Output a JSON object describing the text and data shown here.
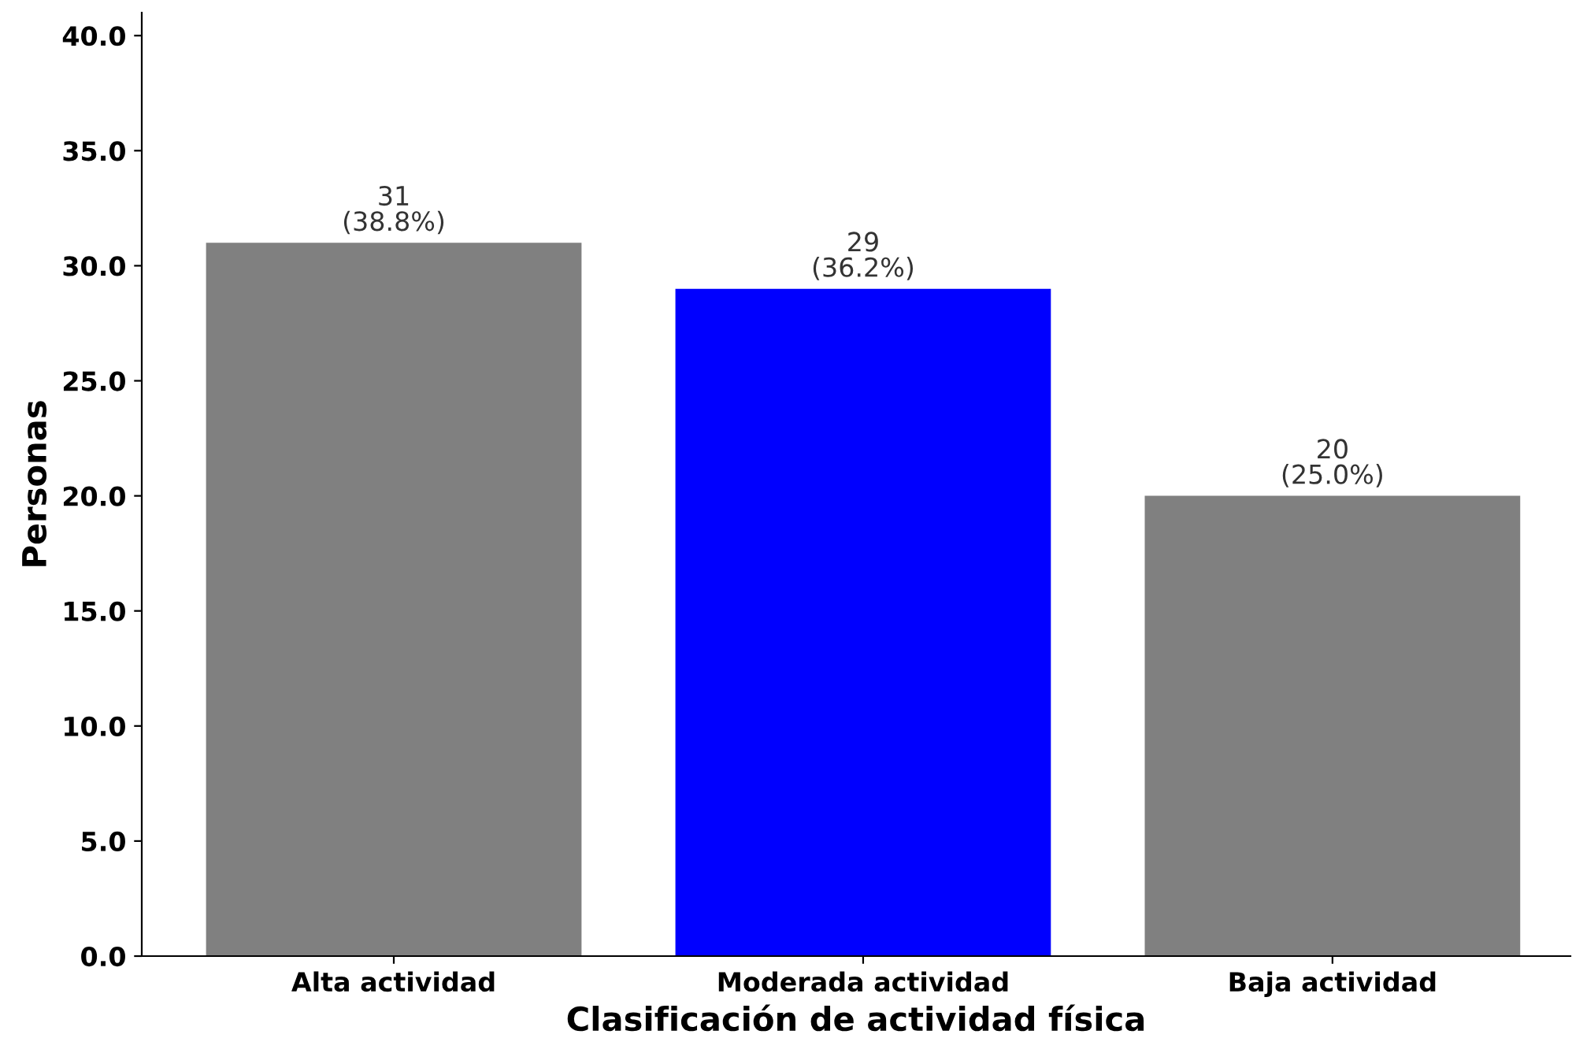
{
  "chart_data": {
    "type": "bar",
    "xlabel": "Clasificación de actividad física",
    "ylabel": "Personas",
    "categories": [
      "Alta actividad",
      "Moderada actividad",
      "Baja actividad"
    ],
    "values": [
      31,
      29,
      20
    ],
    "colors": [
      "#808080",
      "#0000ff",
      "#808080"
    ],
    "value_labels": [
      "31\n(38.8%)",
      "29\n(36.2%)",
      "20\n(25.0%)"
    ],
    "ylim": [
      0,
      41
    ],
    "yticks": [
      {
        "value": 0,
        "label": "0.0"
      },
      {
        "value": 5,
        "label": "5.0"
      },
      {
        "value": 10,
        "label": "10.0"
      },
      {
        "value": 15,
        "label": "15.0"
      },
      {
        "value": 20,
        "label": "20.0"
      },
      {
        "value": 25,
        "label": "25.0"
      },
      {
        "value": 30,
        "label": "30.0"
      },
      {
        "value": 35,
        "label": "35.0"
      },
      {
        "value": 40,
        "label": "40.0"
      }
    ],
    "grid": false,
    "legend": false
  }
}
